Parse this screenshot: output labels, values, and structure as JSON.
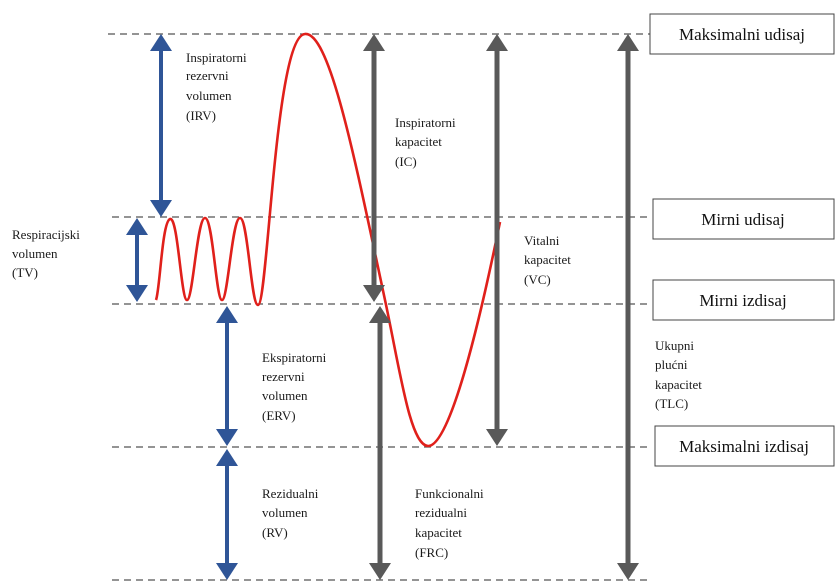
{
  "colors": {
    "blue_arrow": "#2f5597",
    "gray_arrow": "#595959",
    "curve": "#e0201b",
    "dashed_line": "#555555",
    "box_border": "#444444"
  },
  "levels": {
    "max_inhale": "Maksimalni udisaj",
    "quiet_inhale": "Mirni udisaj",
    "quiet_exhale": "Mirni izdisaj",
    "max_exhale": "Maksimalni izdisaj"
  },
  "volumes": {
    "irv": [
      "Inspiratorni",
      "rezervni",
      "volumen",
      "(IRV)"
    ],
    "tv": [
      "Respiracijski",
      "volumen",
      "(TV)"
    ],
    "erv": [
      "Ekspiratorni",
      "rezervni",
      "volumen",
      "(ERV)"
    ],
    "rv": [
      "Rezidualni",
      "volumen",
      "(RV)"
    ]
  },
  "capacities": {
    "ic": [
      "Inspiratorni",
      "kapacitet",
      "(IC)"
    ],
    "vc": [
      "Vitalni",
      "kapacitet",
      "(VC)"
    ],
    "frc": [
      "Funkcionalni",
      "rezidualni",
      "kapacitet",
      "(FRC)"
    ],
    "tlc": [
      "Ukupni",
      "plućni",
      "kapacitet",
      "(TLC)"
    ]
  }
}
